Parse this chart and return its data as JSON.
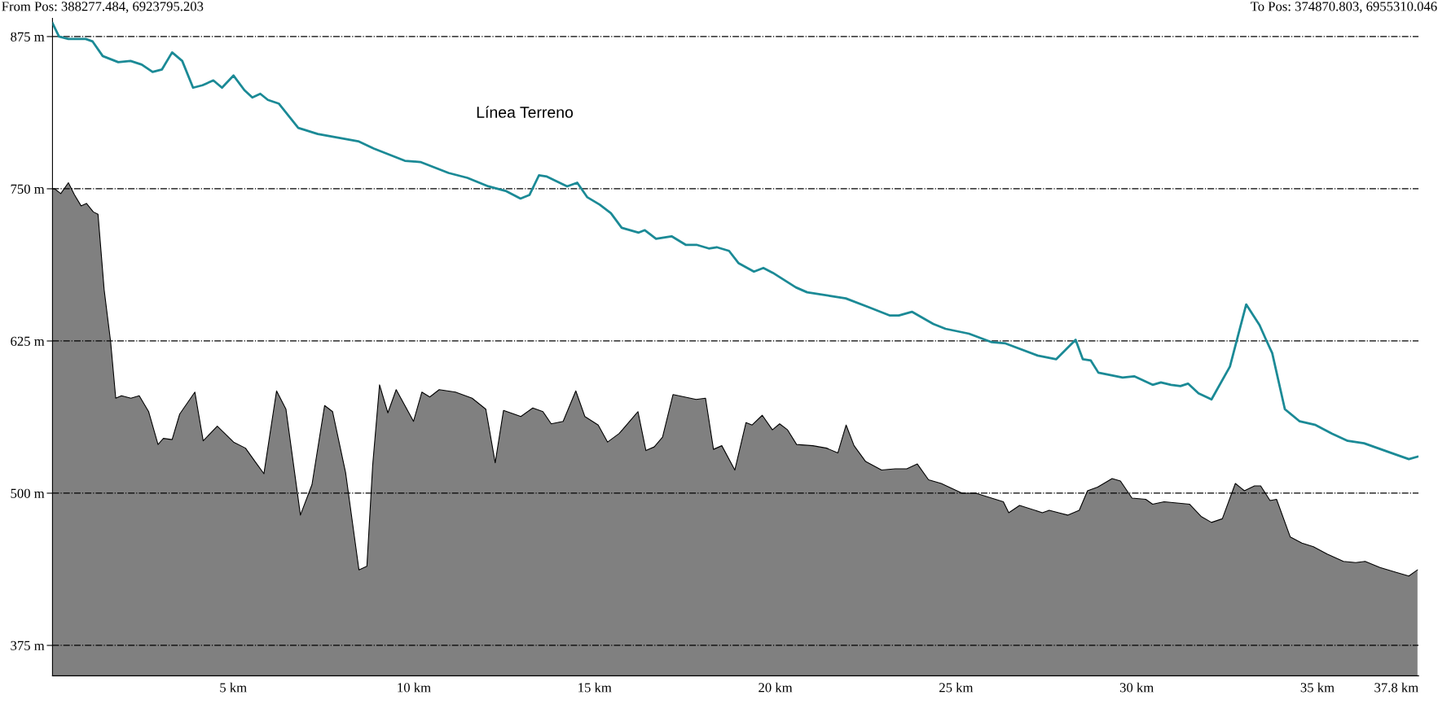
{
  "chart_data": {
    "type": "line",
    "annotations": [
      "From Pos: 388277.484, 6923795.203",
      "To Pos: 374870.803, 6955310.046",
      "Línea Terreno"
    ],
    "series": [
      {
        "type": "area",
        "color": "#808080",
        "x": [
          0.0,
          0.06,
          0.23,
          0.44,
          0.61,
          0.79,
          0.94,
          1.13,
          1.26,
          1.43,
          1.61,
          1.75,
          1.91,
          2.17,
          2.4,
          2.66,
          2.92,
          3.07,
          3.31,
          3.52,
          3.94,
          4.17,
          4.56,
          5.01,
          5.34,
          5.63,
          5.85,
          6.2,
          6.46,
          6.86,
          7.18,
          7.53,
          7.75,
          8.11,
          8.48,
          8.7,
          8.86,
          9.05,
          9.28,
          9.51,
          9.99,
          10.22,
          10.44,
          10.7,
          11.15,
          11.61,
          11.99,
          12.25,
          12.48,
          12.96,
          13.29,
          13.57,
          13.8,
          14.13,
          14.48,
          14.73,
          15.1,
          15.36,
          15.68,
          16.2,
          16.42,
          16.65,
          16.88,
          17.17,
          17.81,
          18.07,
          18.29,
          18.52,
          18.88,
          19.19,
          19.36,
          19.64,
          19.92,
          20.12,
          20.34,
          20.59,
          21.04,
          21.42,
          21.73,
          21.96,
          22.18,
          22.5,
          22.94,
          23.32,
          23.64,
          23.93,
          24.24,
          24.59,
          25.17,
          25.55,
          26.31,
          26.46,
          26.76,
          27.39,
          27.58,
          27.84,
          28.09,
          28.41,
          28.64,
          28.92,
          29.32,
          29.55,
          29.87,
          30.25,
          30.44,
          30.76,
          31.46,
          31.78,
          32.07,
          32.37,
          32.73,
          32.98,
          33.26,
          33.43,
          33.69,
          33.87,
          34.25,
          34.57,
          34.89,
          35.27,
          35.72,
          36.06,
          36.32,
          36.73,
          37.18,
          37.53,
          37.77
        ],
        "values": [
          750,
          750,
          746,
          755,
          745,
          736,
          738,
          731,
          729,
          667,
          624,
          578,
          580,
          578,
          580,
          567,
          540,
          545,
          544,
          565,
          583,
          543,
          555,
          542,
          537,
          525,
          516,
          584,
          569,
          482,
          507,
          572,
          567,
          517,
          437,
          440,
          523,
          589,
          566,
          585,
          559,
          583,
          579,
          585,
          583,
          578,
          569,
          525,
          568,
          563,
          570,
          567,
          557,
          559,
          584,
          563,
          556,
          542,
          549,
          567,
          535,
          538,
          546,
          581,
          577,
          578,
          536,
          539,
          519,
          558,
          556,
          564,
          552,
          557,
          552,
          540,
          539,
          537,
          533,
          556,
          539,
          526,
          519,
          520,
          520,
          524,
          511,
          508,
          500,
          500,
          493,
          484,
          490,
          484,
          486,
          484,
          482,
          486,
          502,
          505,
          512,
          510,
          496,
          495,
          491,
          493,
          491,
          481,
          476,
          479,
          508,
          502,
          506,
          506,
          494,
          495,
          464,
          459,
          456,
          450,
          444,
          443,
          444,
          439,
          435,
          432,
          437
        ]
      },
      {
        "color": "#1b8a96",
        "x": [
          0.0,
          0.18,
          0.44,
          0.92,
          1.11,
          1.39,
          1.82,
          2.16,
          2.47,
          2.77,
          3.03,
          3.31,
          3.59,
          3.89,
          4.15,
          4.45,
          4.69,
          5.01,
          5.31,
          5.53,
          5.75,
          5.96,
          6.26,
          6.8,
          7.34,
          8.46,
          8.89,
          9.75,
          10.18,
          10.96,
          11.48,
          12.06,
          12.56,
          12.95,
          13.2,
          13.46,
          13.68,
          14.24,
          14.52,
          14.8,
          15.14,
          15.45,
          15.75,
          16.22,
          16.39,
          16.7,
          17.13,
          17.52,
          17.82,
          18.16,
          18.38,
          18.72,
          18.98,
          19.41,
          19.67,
          19.93,
          20.57,
          20.88,
          21.52,
          21.95,
          22.56,
          23.16,
          23.42,
          23.78,
          24.37,
          24.71,
          25.36,
          25.99,
          26.37,
          27.26,
          27.77,
          28.31,
          28.51,
          28.73,
          28.94,
          29.61,
          29.93,
          30.44,
          30.67,
          30.95,
          31.21,
          31.42,
          31.71,
          32.07,
          32.58,
          33.03,
          33.4,
          33.58,
          33.75,
          34.1,
          34.51,
          34.95,
          35.4,
          35.84,
          36.29,
          36.67,
          37.05,
          37.53,
          37.77
        ],
        "values": [
          886,
          875,
          873,
          873,
          871,
          859,
          854,
          855,
          852,
          846,
          848,
          862,
          855,
          833,
          835,
          839,
          833,
          843,
          831,
          825,
          828,
          823,
          820,
          800,
          795,
          789,
          783,
          773,
          772,
          763,
          759,
          752,
          748,
          742,
          745,
          761,
          760,
          752,
          755,
          743,
          737,
          730,
          718,
          714,
          716,
          709,
          711,
          704,
          704,
          701,
          702,
          699,
          689,
          682,
          685,
          681,
          669,
          665,
          662,
          660,
          653,
          646,
          646,
          649,
          639,
          635,
          631,
          624,
          623,
          613,
          610,
          626,
          610,
          609,
          599,
          595,
          596,
          589,
          591,
          589,
          588,
          590,
          582,
          577,
          604,
          655,
          638,
          626,
          615,
          569,
          559,
          556,
          549,
          543,
          541,
          537,
          533,
          528,
          530
        ]
      }
    ],
    "xlim": [
      0,
      37.8
    ],
    "xticks": [
      {
        "value": 0,
        "label": null
      },
      {
        "value": 5,
        "label": "5 km"
      },
      {
        "value": 10,
        "label": "10 km"
      },
      {
        "value": 15,
        "label": "15 km"
      },
      {
        "value": 20,
        "label": "20 km"
      },
      {
        "value": 25,
        "label": "25 km"
      },
      {
        "value": 30,
        "label": "30 km"
      },
      {
        "value": 35,
        "label": "35 km"
      },
      {
        "value": 37.8,
        "label": "37.8 km"
      }
    ],
    "ylim": [
      350,
      890
    ],
    "yticks": [
      {
        "value": 375,
        "label": "375 m"
      },
      {
        "value": 500,
        "label": "500 m"
      },
      {
        "value": 625,
        "label": "625 m"
      },
      {
        "value": 750,
        "label": "750 m"
      },
      {
        "value": 875,
        "label": "875 m"
      }
    ],
    "grid": "y"
  }
}
